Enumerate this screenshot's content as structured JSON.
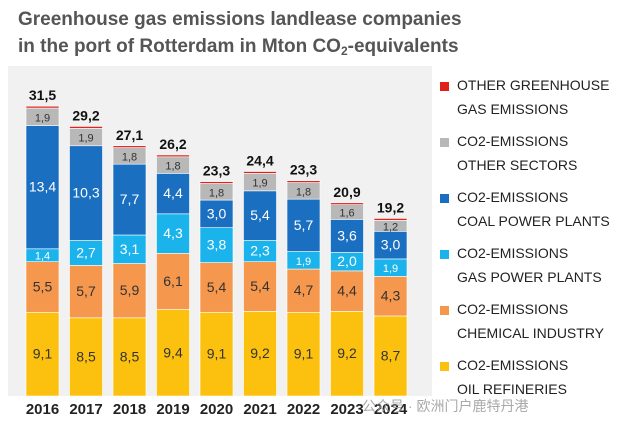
{
  "title": {
    "line1": "Greenhouse gas emissions landlease companies",
    "line2_prefix": "in the port of Rotterdam in Mton CO",
    "line2_sub": "2",
    "line2_suffix": "-equivalents"
  },
  "watermark": "公众号 · 欧洲门户鹿特丹港",
  "chart_data": {
    "type": "bar",
    "stacked": true,
    "categories": [
      "2016",
      "2017",
      "2018",
      "2019",
      "2020",
      "2021",
      "2022",
      "2023",
      "2024"
    ],
    "totals": [
      "31,5",
      "29,2",
      "27,1",
      "26,2",
      "23,3",
      "24,4",
      "23,3",
      "20,9",
      "19,2"
    ],
    "series": [
      {
        "name": "CO2-EMISSIONS OIL REFINERIES",
        "color": "#fcc10f",
        "values": [
          9.1,
          8.5,
          8.5,
          9.4,
          9.1,
          9.2,
          9.1,
          9.2,
          8.7
        ],
        "labels": [
          "9,1",
          "8,5",
          "8,5",
          "9,4",
          "9,1",
          "9,2",
          "9,1",
          "9,2",
          "8,7"
        ]
      },
      {
        "name": "CO2-EMISSIONS CHEMICAL INDUSTRY",
        "color": "#f5974d",
        "values": [
          5.5,
          5.7,
          5.9,
          6.1,
          5.4,
          5.4,
          4.7,
          4.4,
          4.3
        ],
        "labels": [
          "5,5",
          "5,7",
          "5,9",
          "6,1",
          "5,4",
          "5,4",
          "4,7",
          "4,4",
          "4,3"
        ]
      },
      {
        "name": "CO2-EMISSIONS GAS POWER PLANTS",
        "color": "#1ab3ec",
        "values": [
          1.4,
          2.7,
          3.1,
          4.3,
          3.8,
          2.3,
          1.9,
          2.0,
          1.9
        ],
        "labels": [
          "1,4",
          "2,7",
          "3,1",
          "4,3",
          "3,8",
          "2,3",
          "1,9",
          "2,0",
          "1,9"
        ]
      },
      {
        "name": "CO2-EMISSIONS COAL POWER PLANTS",
        "color": "#1a6fc0",
        "values": [
          13.4,
          10.3,
          7.7,
          4.4,
          3.0,
          5.4,
          5.7,
          3.6,
          3.0
        ],
        "labels": [
          "13,4",
          "10,3",
          "7,7",
          "4,4",
          "3,0",
          "5,4",
          "5,7",
          "3,6",
          "3,0"
        ]
      },
      {
        "name": "CO2-EMISSIONS OTHER SECTORS",
        "color": "#b8b8b8",
        "values": [
          1.9,
          1.9,
          1.8,
          1.8,
          1.8,
          1.9,
          1.8,
          1.6,
          1.2
        ],
        "labels": [
          "1,9",
          "1,9",
          "1,8",
          "1,8",
          "1,8",
          "1,9",
          "1,8",
          "1,6",
          "1,2"
        ]
      },
      {
        "name": "OTHER GREENHOUSE GAS EMISSIONS",
        "color": "#e0201b",
        "values": [
          0.2,
          0.2,
          0.2,
          0.2,
          0.2,
          0.2,
          0.2,
          0.2,
          0.2
        ],
        "labels": [
          "",
          "",
          "",
          "",
          "",
          "",
          "",
          "",
          ""
        ]
      }
    ],
    "ylim": [
      0,
      35
    ],
    "grid": false,
    "legend": {
      "placement": "right",
      "order": "top-to-bottom",
      "items": [
        {
          "line1": "OTHER GREENHOUSE",
          "line2": "GAS EMISSIONS",
          "color": "#e0201b"
        },
        {
          "line1": "CO2-EMISSIONS",
          "line2": "OTHER SECTORS",
          "color": "#b8b8b8"
        },
        {
          "line1": "CO2-EMISSIONS",
          "line2": "COAL POWER PLANTS",
          "color": "#1a6fc0"
        },
        {
          "line1": "CO2-EMISSIONS",
          "line2": "GAS POWER PLANTS",
          "color": "#1ab3ec"
        },
        {
          "line1": "CO2-EMISSIONS",
          "line2": "CHEMICAL INDUSTRY",
          "color": "#f5974d"
        },
        {
          "line1": "CO2-EMISSIONS",
          "line2": "OIL REFINERIES",
          "color": "#fcc10f"
        }
      ]
    }
  }
}
